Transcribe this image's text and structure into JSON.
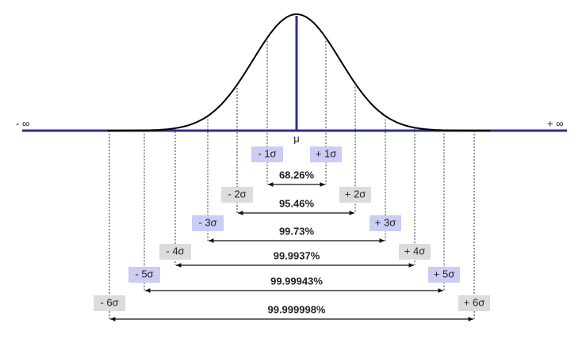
{
  "infinity_left": "- ∞",
  "infinity_right": "+ ∞",
  "mean": "μ",
  "levels": [
    {
      "minus": "- 1σ",
      "plus": "+ 1σ",
      "coverage": "68.26%"
    },
    {
      "minus": "- 2σ",
      "plus": "+ 2σ",
      "coverage": "95.46%"
    },
    {
      "minus": "- 3σ",
      "plus": "+ 3σ",
      "coverage": "99.73%"
    },
    {
      "minus": "- 4σ",
      "plus": "+ 4σ",
      "coverage": "99.9937%"
    },
    {
      "minus": "- 5σ",
      "plus": "+ 5σ",
      "coverage": "99.99943%"
    },
    {
      "minus": "- 6σ",
      "plus": "+ 6σ",
      "coverage": "99.999998%"
    }
  ]
}
